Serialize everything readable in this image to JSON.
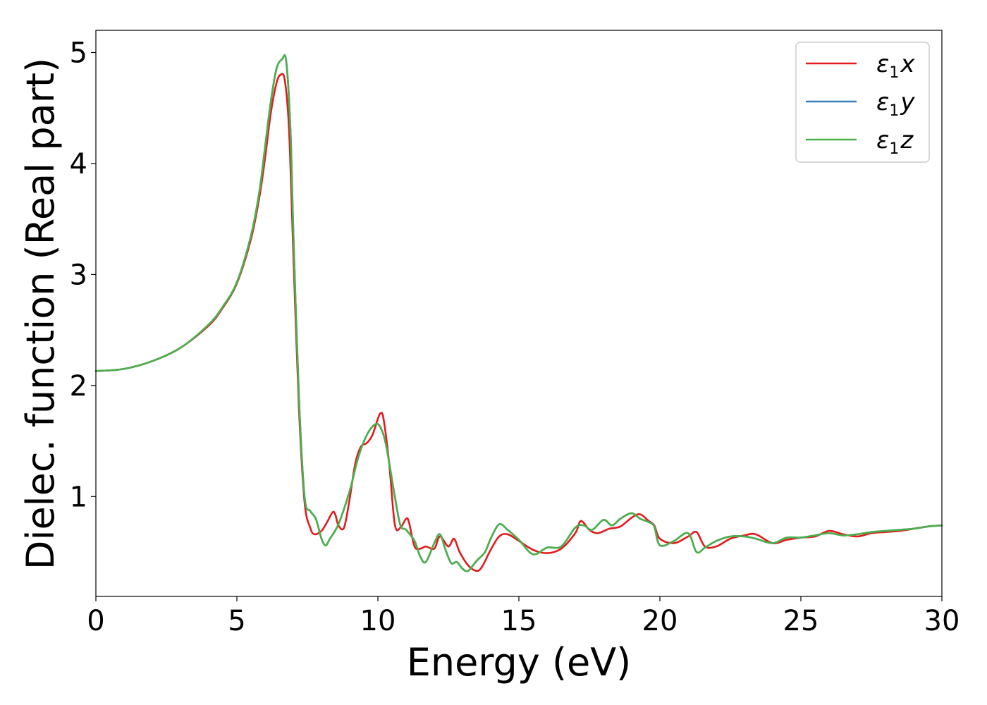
{
  "chart_data": {
    "type": "line",
    "title": "",
    "xlabel": "Energy (eV)",
    "ylabel": "Dielec. function (Real part)",
    "xlim": [
      0,
      30
    ],
    "ylim": [
      0.1,
      5.2
    ],
    "xticks": [
      0,
      5,
      10,
      15,
      20,
      25,
      30
    ],
    "xtick_labels": [
      "0",
      "5",
      "10",
      "15",
      "20",
      "25",
      "30"
    ],
    "yticks": [
      1,
      2,
      3,
      4,
      5
    ],
    "ytick_labels": [
      "1",
      "2",
      "3",
      "4",
      "5"
    ],
    "grid": false,
    "legend_position": "top-right",
    "series": [
      {
        "name": "ε1x",
        "legend_symbol": "ε",
        "legend_sub": "1",
        "legend_var": "x",
        "color": "#e41a1c",
        "x": [
          0,
          1,
          2,
          3,
          4,
          4.5,
          5,
          5.5,
          5.8,
          6.0,
          6.2,
          6.4,
          6.55,
          6.7,
          6.85,
          7.0,
          7.2,
          7.4,
          7.6,
          7.75,
          8.0,
          8.2,
          8.4,
          8.5,
          8.6,
          8.8,
          9.0,
          9.2,
          9.4,
          9.6,
          9.8,
          10.0,
          10.1,
          10.2,
          10.4,
          10.6,
          10.8,
          11.0,
          11.1,
          11.3,
          11.5,
          11.7,
          12.0,
          12.2,
          12.5,
          12.7,
          12.9,
          13.2,
          13.5,
          13.7,
          14.0,
          14.3,
          14.6,
          15.0,
          15.5,
          16.0,
          16.5,
          17.0,
          17.2,
          17.5,
          17.8,
          18.2,
          18.6,
          19.0,
          19.3,
          19.6,
          19.8,
          20.0,
          20.5,
          21.0,
          21.3,
          21.6,
          22.0,
          22.5,
          23.0,
          23.4,
          24.0,
          24.5,
          25.0,
          25.5,
          26.0,
          26.5,
          27.0,
          27.5,
          28.0,
          28.5,
          29.0,
          29.5,
          30.0
        ],
        "y": [
          2.13,
          2.15,
          2.22,
          2.34,
          2.54,
          2.7,
          2.92,
          3.32,
          3.7,
          4.05,
          4.45,
          4.72,
          4.8,
          4.75,
          4.3,
          3.2,
          1.8,
          0.95,
          0.72,
          0.66,
          0.69,
          0.77,
          0.86,
          0.83,
          0.74,
          0.72,
          0.98,
          1.3,
          1.45,
          1.48,
          1.55,
          1.7,
          1.75,
          1.7,
          1.3,
          0.75,
          0.72,
          0.8,
          0.77,
          0.55,
          0.53,
          0.55,
          0.53,
          0.64,
          0.55,
          0.62,
          0.5,
          0.38,
          0.33,
          0.37,
          0.52,
          0.64,
          0.66,
          0.6,
          0.52,
          0.49,
          0.53,
          0.67,
          0.78,
          0.7,
          0.67,
          0.71,
          0.73,
          0.81,
          0.84,
          0.78,
          0.74,
          0.62,
          0.58,
          0.64,
          0.68,
          0.55,
          0.55,
          0.62,
          0.65,
          0.66,
          0.58,
          0.61,
          0.63,
          0.64,
          0.69,
          0.66,
          0.64,
          0.67,
          0.68,
          0.69,
          0.71,
          0.73,
          0.74
        ]
      },
      {
        "name": "ε1y",
        "legend_symbol": "ε",
        "legend_sub": "1",
        "legend_var": "y",
        "color": "#377eb8",
        "x": [
          0,
          1,
          2,
          3,
          4,
          4.5,
          5,
          5.5,
          5.8,
          6.0,
          6.2,
          6.4,
          6.6,
          6.75,
          6.9,
          7.0,
          7.2,
          7.4,
          7.6,
          7.8,
          8.0,
          8.15,
          8.3,
          8.6,
          9.0,
          9.3,
          9.6,
          9.9,
          10.1,
          10.3,
          10.6,
          10.8,
          11.0,
          11.3,
          11.5,
          11.7,
          12.0,
          12.2,
          12.4,
          12.6,
          12.8,
          13.0,
          13.2,
          13.5,
          13.8,
          14.0,
          14.3,
          14.6,
          15.0,
          15.5,
          16.0,
          16.5,
          17.0,
          17.3,
          17.6,
          18.0,
          18.3,
          18.6,
          19.0,
          19.3,
          19.6,
          19.8,
          20.0,
          20.5,
          21.0,
          21.3,
          21.6,
          22.0,
          22.5,
          23.0,
          23.4,
          24.0,
          24.5,
          25.0,
          25.5,
          26.0,
          26.5,
          27.0,
          27.5,
          28.0,
          28.5,
          29.0,
          29.5,
          30.0
        ],
        "y": [
          2.13,
          2.15,
          2.22,
          2.34,
          2.55,
          2.71,
          2.93,
          3.35,
          3.75,
          4.15,
          4.55,
          4.85,
          4.94,
          4.92,
          4.3,
          3.4,
          1.9,
          1.0,
          0.87,
          0.8,
          0.62,
          0.56,
          0.62,
          0.75,
          1.05,
          1.35,
          1.55,
          1.65,
          1.62,
          1.45,
          1.0,
          0.74,
          0.7,
          0.6,
          0.46,
          0.41,
          0.58,
          0.66,
          0.52,
          0.4,
          0.41,
          0.35,
          0.33,
          0.42,
          0.5,
          0.62,
          0.75,
          0.7,
          0.61,
          0.48,
          0.54,
          0.55,
          0.72,
          0.74,
          0.7,
          0.79,
          0.74,
          0.8,
          0.85,
          0.8,
          0.77,
          0.73,
          0.56,
          0.6,
          0.67,
          0.5,
          0.54,
          0.6,
          0.64,
          0.64,
          0.62,
          0.58,
          0.63,
          0.63,
          0.65,
          0.67,
          0.65,
          0.66,
          0.68,
          0.69,
          0.7,
          0.71,
          0.73,
          0.74
        ]
      },
      {
        "name": "ε1z",
        "legend_symbol": "ε",
        "legend_sub": "1",
        "legend_var": "z",
        "color": "#4daf4a",
        "x": [
          0,
          1,
          2,
          3,
          4,
          4.5,
          5,
          5.5,
          5.8,
          6.0,
          6.2,
          6.4,
          6.6,
          6.75,
          6.9,
          7.0,
          7.2,
          7.4,
          7.6,
          7.8,
          8.0,
          8.15,
          8.3,
          8.6,
          9.0,
          9.3,
          9.6,
          9.9,
          10.1,
          10.3,
          10.6,
          10.8,
          11.0,
          11.3,
          11.5,
          11.7,
          12.0,
          12.2,
          12.4,
          12.6,
          12.8,
          13.0,
          13.2,
          13.5,
          13.8,
          14.0,
          14.3,
          14.6,
          15.0,
          15.5,
          16.0,
          16.5,
          17.0,
          17.3,
          17.6,
          18.0,
          18.3,
          18.6,
          19.0,
          19.3,
          19.6,
          19.8,
          20.0,
          20.5,
          21.0,
          21.3,
          21.6,
          22.0,
          22.5,
          23.0,
          23.4,
          24.0,
          24.5,
          25.0,
          25.5,
          26.0,
          26.5,
          27.0,
          27.5,
          28.0,
          28.5,
          29.0,
          29.5,
          30.0
        ],
        "y": [
          2.13,
          2.15,
          2.22,
          2.34,
          2.55,
          2.71,
          2.93,
          3.35,
          3.75,
          4.15,
          4.55,
          4.85,
          4.94,
          4.92,
          4.3,
          3.4,
          1.9,
          1.0,
          0.87,
          0.8,
          0.62,
          0.56,
          0.62,
          0.75,
          1.05,
          1.35,
          1.55,
          1.65,
          1.62,
          1.45,
          1.0,
          0.74,
          0.7,
          0.6,
          0.46,
          0.41,
          0.58,
          0.66,
          0.52,
          0.4,
          0.41,
          0.35,
          0.33,
          0.42,
          0.5,
          0.62,
          0.75,
          0.7,
          0.61,
          0.48,
          0.54,
          0.55,
          0.72,
          0.74,
          0.7,
          0.79,
          0.74,
          0.8,
          0.85,
          0.8,
          0.77,
          0.73,
          0.56,
          0.6,
          0.67,
          0.5,
          0.54,
          0.6,
          0.64,
          0.64,
          0.62,
          0.58,
          0.63,
          0.63,
          0.65,
          0.67,
          0.65,
          0.66,
          0.68,
          0.69,
          0.7,
          0.71,
          0.73,
          0.74
        ]
      }
    ]
  }
}
